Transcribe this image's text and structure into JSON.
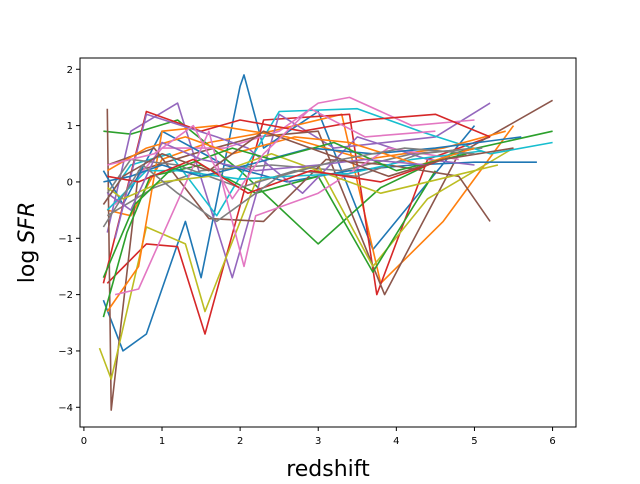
{
  "chart_data": {
    "type": "line",
    "xlabel": "redshift",
    "ylabel_prefix": "log",
    "ylabel_var": "SFR",
    "xlim": [
      -0.05,
      6.3
    ],
    "ylim": [
      -4.35,
      2.2
    ],
    "xticks": [
      0,
      1,
      2,
      3,
      4,
      5,
      6
    ],
    "yticks": [
      -4,
      -3,
      -2,
      -1,
      0,
      1,
      2
    ],
    "xtick_labels": [
      "0",
      "1",
      "2",
      "3",
      "4",
      "5",
      "6"
    ],
    "ytick_labels": [
      "−4",
      "−3",
      "−2",
      "−1",
      "0",
      "1",
      "2"
    ],
    "grid": false,
    "legend": "none",
    "colors": [
      "#1f77b4",
      "#ff7f0e",
      "#2ca02c",
      "#d62728",
      "#9467bd",
      "#8c564b",
      "#e377c2",
      "#7f7f7f",
      "#bcbd22",
      "#17becf"
    ],
    "series": [
      {
        "x": [
          0.25,
          0.5,
          0.8,
          1.3,
          1.5,
          2.0,
          2.05,
          2.3,
          3.0,
          3.7,
          5.0
        ],
        "y": [
          -2.1,
          -3.0,
          -2.7,
          -0.7,
          -1.7,
          1.7,
          1.9,
          0.6,
          1.25,
          -1.2,
          1.0
        ]
      },
      {
        "x": [
          0.3,
          0.6,
          1.0,
          1.6,
          2.4,
          3.3,
          3.8,
          4.6,
          5.5
        ],
        "y": [
          -0.5,
          -0.6,
          0.4,
          0.7,
          0.9,
          1.2,
          -1.8,
          -0.7,
          1.0
        ]
      },
      {
        "x": [
          0.25,
          0.6,
          1.2,
          2.0,
          3.0,
          3.8,
          4.7,
          6.0
        ],
        "y": [
          0.9,
          0.85,
          1.1,
          0.2,
          -1.1,
          -0.1,
          0.5,
          0.9
        ]
      },
      {
        "x": [
          0.3,
          0.8,
          1.2,
          1.55,
          2.3,
          3.4,
          3.75,
          4.4,
          5.2
        ],
        "y": [
          -1.8,
          -1.1,
          -1.15,
          -2.7,
          1.1,
          1.2,
          -2.0,
          0.4,
          0.8
        ]
      },
      {
        "x": [
          0.3,
          0.6,
          1.2,
          1.9,
          2.5,
          3.2,
          4.5,
          5.2
        ],
        "y": [
          -0.9,
          0.9,
          1.4,
          -1.7,
          1.2,
          0.6,
          0.8,
          1.4
        ]
      },
      {
        "x": [
          0.3,
          0.35,
          0.7,
          1.4,
          2.2,
          3.0,
          3.85,
          4.8,
          6.0
        ],
        "y": [
          1.3,
          -4.05,
          0.2,
          0.5,
          0.8,
          0.9,
          -2.0,
          0.5,
          1.45
        ]
      },
      {
        "x": [
          0.4,
          1.0,
          1.8,
          2.5,
          3.0,
          3.4,
          4.2,
          5.0
        ],
        "y": [
          -0.4,
          0.6,
          0.6,
          0.9,
          1.4,
          1.5,
          1.0,
          1.1
        ]
      },
      {
        "x": [
          0.3,
          0.9,
          1.5,
          2.4,
          3.3,
          4.2,
          5.1
        ],
        "y": [
          -0.6,
          -0.1,
          0.2,
          0.3,
          0.2,
          0.5,
          0.6
        ]
      },
      {
        "x": [
          0.2,
          0.35,
          0.8,
          1.3,
          1.55,
          2.2,
          3.0,
          3.7,
          4.4,
          5.5
        ],
        "y": [
          -2.95,
          -3.5,
          -0.8,
          -1.1,
          -2.3,
          0.0,
          0.3,
          -1.5,
          -0.3,
          0.6
        ]
      },
      {
        "x": [
          0.3,
          0.6,
          1.1,
          1.7,
          2.5,
          3.5,
          4.3,
          5.2,
          6.0
        ],
        "y": [
          -0.3,
          0.3,
          0.5,
          -0.6,
          1.25,
          1.3,
          0.9,
          0.5,
          0.7
        ]
      },
      {
        "x": [
          0.25,
          0.5,
          1.0,
          1.8,
          2.6,
          3.4,
          4.2,
          5.0,
          5.8
        ],
        "y": [
          0.2,
          -0.4,
          0.9,
          0.3,
          0.0,
          0.2,
          0.3,
          0.35,
          0.35
        ]
      },
      {
        "x": [
          0.3,
          0.7,
          1.0,
          1.7,
          2.6,
          3.6,
          4.6,
          5.4
        ],
        "y": [
          -2.3,
          -1.5,
          0.9,
          1.0,
          0.8,
          0.4,
          0.6,
          0.9
        ]
      },
      {
        "x": [
          0.25,
          0.55,
          0.85,
          1.5,
          2.2,
          3.0,
          3.7,
          4.5
        ],
        "y": [
          -2.4,
          -0.9,
          0.1,
          0.3,
          -0.2,
          0.1,
          -1.6,
          0.2
        ]
      },
      {
        "x": [
          0.25,
          0.8,
          1.5,
          2.0,
          2.8,
          3.6,
          4.5,
          5.2
        ],
        "y": [
          -1.8,
          1.25,
          0.9,
          1.1,
          0.9,
          1.1,
          1.2,
          0.8
        ]
      },
      {
        "x": [
          0.4,
          0.8,
          1.7,
          2.1,
          2.8,
          3.5,
          4.4,
          5.0
        ],
        "y": [
          -1.0,
          1.2,
          0.8,
          0.6,
          -0.2,
          0.8,
          0.4,
          0.3
        ]
      },
      {
        "x": [
          0.3,
          0.9,
          1.6,
          2.3,
          3.1,
          3.9,
          4.8,
          5.2
        ],
        "y": [
          0.3,
          0.6,
          -0.65,
          -0.7,
          0.4,
          0.3,
          0.1,
          -0.7
        ]
      },
      {
        "x": [
          0.4,
          0.7,
          1.6,
          2.05,
          2.2,
          3.0,
          3.9,
          4.8
        ],
        "y": [
          -2.0,
          -1.9,
          0.9,
          -1.5,
          -0.6,
          -0.2,
          0.6,
          0.4
        ]
      },
      {
        "x": [
          0.3,
          0.6,
          1.2,
          2.0,
          2.7,
          3.5,
          4.3,
          5.0
        ],
        "y": [
          -0.2,
          0.4,
          0.3,
          -0.1,
          0.2,
          0.1,
          0.5,
          0.6
        ]
      },
      {
        "x": [
          0.3,
          0.5,
          1.0,
          1.6,
          2.4,
          3.0,
          3.8,
          4.7,
          5.3
        ],
        "y": [
          -0.1,
          -0.3,
          0.0,
          0.1,
          0.5,
          0.2,
          -0.2,
          0.1,
          0.3
        ]
      },
      {
        "x": [
          0.3,
          0.8,
          1.2,
          2.0,
          2.6,
          3.4,
          4.2,
          5.1
        ],
        "y": [
          -0.5,
          0.2,
          0.2,
          0.05,
          0.1,
          0.15,
          0.4,
          0.55
        ]
      },
      {
        "x": [
          0.25,
          0.6,
          1.0,
          1.5,
          2.1,
          2.9,
          3.7,
          4.5,
          5.6
        ],
        "y": [
          0.0,
          0.1,
          0.3,
          0.1,
          0.3,
          0.6,
          0.5,
          0.6,
          0.8
        ]
      },
      {
        "x": [
          0.3,
          0.8,
          1.3,
          1.9,
          2.7,
          3.4,
          4.3,
          5.0
        ],
        "y": [
          0.2,
          0.6,
          0.8,
          0.5,
          0.8,
          0.7,
          0.3,
          0.6
        ]
      },
      {
        "x": [
          0.25,
          0.65,
          1.1,
          1.9,
          2.4,
          3.2,
          4.0,
          4.9
        ],
        "y": [
          -1.7,
          -0.4,
          0.2,
          0.6,
          0.4,
          0.7,
          0.2,
          0.5
        ]
      },
      {
        "x": [
          0.3,
          0.7,
          1.4,
          2.1,
          2.9,
          3.8,
          4.6
        ],
        "y": [
          0.1,
          0.0,
          0.4,
          -0.2,
          0.2,
          0.0,
          0.4
        ]
      },
      {
        "x": [
          0.3,
          0.6,
          1.0,
          1.5,
          2.2,
          3.0,
          3.6,
          4.4
        ],
        "y": [
          -0.2,
          -0.5,
          0.7,
          0.4,
          0.2,
          0.3,
          0.4,
          0.3
        ]
      },
      {
        "x": [
          0.25,
          0.5,
          1.0,
          1.6,
          2.3,
          3.1,
          3.9,
          4.6,
          5.5
        ],
        "y": [
          -0.4,
          0.1,
          0.5,
          0.2,
          0.9,
          0.5,
          0.1,
          0.4,
          0.6
        ]
      },
      {
        "x": [
          0.3,
          0.9,
          1.4,
          1.9,
          2.3,
          2.9,
          3.6,
          4.5
        ],
        "y": [
          0.3,
          0.5,
          1.0,
          -0.3,
          0.5,
          1.3,
          0.8,
          0.9
        ]
      },
      {
        "x": [
          0.25,
          0.75,
          1.2,
          1.7,
          2.5,
          3.3,
          4.1,
          5.0
        ],
        "y": [
          -0.8,
          0.3,
          -0.2,
          -0.7,
          0.1,
          0.4,
          0.6,
          0.5
        ]
      }
    ]
  }
}
